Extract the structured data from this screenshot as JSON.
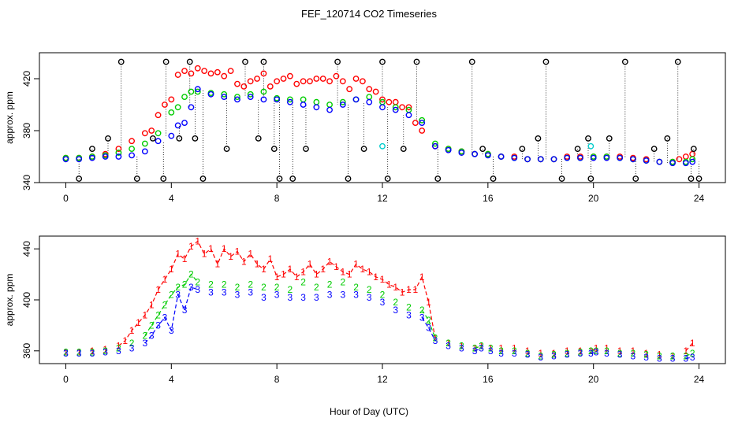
{
  "title": "FEF_120714  CO2 Timeseries",
  "xlabel": "Hour of Day (UTC)",
  "colors": {
    "series_1": "#ff0000",
    "series_2": "#00cc00",
    "series_3": "#0000ff",
    "outlier": "#000000",
    "special": "#00cccc",
    "frame": "#000000"
  },
  "chart_data": [
    {
      "type": "scatter",
      "panel": "top",
      "ylabel": "approx. ppm",
      "xlim": [
        -1,
        25
      ],
      "ylim": [
        340,
        440
      ],
      "x_ticks": [
        0,
        4,
        8,
        12,
        16,
        20,
        24
      ],
      "y_ticks": [
        340,
        380,
        420
      ],
      "grid": false,
      "drop_lines_to_outliers": true,
      "outlier_levels": [
        343,
        366,
        374,
        433
      ],
      "series": [
        {
          "color": "red",
          "x": [
            0,
            0.5,
            1,
            1.5,
            2,
            2.5,
            3,
            3.25,
            3.5,
            3.75,
            4,
            4.25,
            4.5,
            4.75,
            5,
            5.25,
            5.5,
            5.75,
            6,
            6.25,
            6.5,
            6.75,
            7,
            7.25,
            7.5,
            7.75,
            8,
            8.25,
            8.5,
            8.75,
            9,
            9.25,
            9.5,
            9.75,
            10,
            10.25,
            10.5,
            10.75,
            11,
            11.25,
            11.5,
            11.75,
            12,
            12.25,
            12.5,
            12.75,
            13,
            13.25,
            13.5,
            14,
            14.5,
            15,
            15.5,
            16,
            16.5,
            17,
            17.5,
            18,
            18.5,
            19,
            19.5,
            20,
            20.5,
            21,
            21.5,
            22,
            22.5,
            23,
            23.25,
            23.5,
            23.75
          ],
          "y": [
            359,
            359,
            360,
            362,
            366,
            372,
            378,
            380,
            392,
            400,
            404,
            423,
            426,
            424,
            428,
            426,
            424,
            425,
            422,
            426,
            416,
            414,
            418,
            420,
            424,
            414,
            418,
            420,
            422,
            416,
            418,
            418,
            420,
            420,
            418,
            422,
            418,
            412,
            420,
            418,
            412,
            410,
            404,
            402,
            402,
            398,
            398,
            386,
            380,
            368,
            366,
            364,
            362,
            362,
            360,
            360,
            358,
            358,
            358,
            360,
            360,
            360,
            360,
            360,
            359,
            358,
            356,
            356,
            358,
            360,
            362
          ]
        },
        {
          "color": "green",
          "x": [
            0,
            0.5,
            1,
            1.5,
            2,
            2.5,
            3,
            3.5,
            4,
            4.25,
            4.5,
            4.75,
            5,
            5.5,
            6,
            6.5,
            7,
            7.5,
            8,
            8.5,
            9,
            9.5,
            10,
            10.5,
            11,
            11.5,
            12,
            12.5,
            13,
            13.5,
            14,
            14.5,
            15,
            15.5,
            16,
            16.5,
            17,
            17.5,
            18,
            18.5,
            19,
            19.5,
            20,
            20.5,
            21,
            21.5,
            22,
            22.5,
            23,
            23.5,
            23.75
          ],
          "y": [
            359,
            359,
            360,
            361,
            363,
            366,
            370,
            378,
            394,
            398,
            406,
            410,
            410,
            409,
            408,
            406,
            408,
            410,
            405,
            404,
            404,
            402,
            400,
            402,
            404,
            406,
            402,
            398,
            396,
            388,
            370,
            366,
            364,
            362,
            362,
            360,
            359,
            358,
            358,
            358,
            359,
            359,
            360,
            360,
            359,
            358,
            357,
            356,
            356,
            356,
            358
          ]
        },
        {
          "color": "blue",
          "x": [
            0,
            0.5,
            1,
            1.5,
            2,
            2.5,
            3,
            3.5,
            4,
            4.25,
            4.5,
            4.75,
            5,
            5.5,
            6,
            6.5,
            7,
            7.5,
            8,
            8.5,
            9,
            9.5,
            10,
            10.5,
            11,
            11.5,
            12,
            12.5,
            13,
            13.5,
            14,
            14.5,
            15,
            15.5,
            16,
            16.5,
            17,
            17.5,
            18,
            18.5,
            19,
            19.5,
            20,
            20.5,
            21,
            21.5,
            22,
            22.5,
            23,
            23.5,
            23.75
          ],
          "y": [
            358,
            358,
            359,
            360,
            360,
            361,
            364,
            372,
            376,
            384,
            386,
            398,
            412,
            408,
            406,
            404,
            406,
            404,
            404,
            402,
            400,
            398,
            396,
            400,
            404,
            402,
            398,
            396,
            392,
            386,
            368,
            365,
            363,
            362,
            361,
            360,
            359,
            358,
            358,
            358,
            359,
            359,
            359,
            359,
            359,
            358,
            357,
            356,
            355,
            355,
            356
          ]
        },
        {
          "color": "black",
          "x": [
            0.5,
            1.0,
            1.6,
            2.1,
            2.7,
            3.3,
            3.7,
            3.8,
            4.3,
            4.7,
            4.9,
            5.2,
            6.1,
            6.8,
            7.3,
            7.5,
            7.9,
            8.1,
            8.6,
            9.1,
            10.3,
            10.7,
            11.3,
            12,
            12.2,
            12.8,
            13.3,
            14.1,
            15.4,
            15.8,
            16.2,
            17.3,
            17.9,
            18.2,
            18.8,
            19.4,
            19.8,
            19.9,
            20.6,
            21.2,
            21.6,
            22.3,
            22.8,
            23.2,
            23.7,
            23.8,
            24
          ],
          "y": [
            343,
            366,
            374,
            433,
            343,
            374,
            343,
            433,
            374,
            433,
            374,
            343,
            366,
            433,
            374,
            433,
            366,
            343,
            343,
            366,
            433,
            343,
            366,
            433,
            343,
            366,
            433,
            343,
            433,
            366,
            343,
            366,
            374,
            433,
            343,
            366,
            374,
            343,
            374,
            433,
            343,
            366,
            374,
            433,
            343,
            366,
            343
          ]
        },
        {
          "color": "cyan",
          "x": [
            12.0,
            19.9
          ],
          "y": [
            368,
            368
          ]
        }
      ]
    },
    {
      "type": "line",
      "panel": "bottom",
      "ylabel": "approx. ppm",
      "xlim": [
        -1,
        25
      ],
      "ylim": [
        350,
        450
      ],
      "x_ticks": [
        0,
        4,
        8,
        12,
        16,
        20,
        24
      ],
      "y_ticks": [
        360,
        400,
        440
      ],
      "grid": false,
      "point_labels": [
        "1",
        "2",
        "3"
      ],
      "series": [
        {
          "name": "1",
          "color": "red",
          "x": [
            0,
            0.5,
            1,
            1.5,
            2,
            2.25,
            2.5,
            2.75,
            3,
            3.25,
            3.5,
            3.75,
            4,
            4.25,
            4.5,
            4.75,
            5,
            5.25,
            5.5,
            5.75,
            6,
            6.25,
            6.5,
            6.75,
            7,
            7.25,
            7.5,
            7.75,
            8,
            8.25,
            8.5,
            8.75,
            9,
            9.25,
            9.5,
            9.75,
            10,
            10.25,
            10.5,
            10.75,
            11,
            11.25,
            11.5,
            11.75,
            12,
            12.25,
            12.5,
            12.75,
            13,
            13.25,
            13.5,
            13.75,
            14,
            14.5,
            15,
            15.5,
            15.75,
            16.1,
            16.5,
            17,
            17.5,
            18,
            18.5,
            19,
            19.5,
            19.9,
            20.1,
            20.5,
            21,
            21.5,
            22,
            22.5,
            23,
            23.5,
            23.75
          ],
          "y": [
            359,
            359,
            360,
            361,
            364,
            368,
            376,
            382,
            388,
            396,
            408,
            416,
            424,
            436,
            432,
            442,
            446,
            436,
            440,
            428,
            440,
            434,
            438,
            430,
            436,
            428,
            424,
            432,
            418,
            420,
            424,
            418,
            422,
            428,
            420,
            424,
            430,
            426,
            422,
            420,
            428,
            424,
            422,
            418,
            416,
            412,
            410,
            406,
            408,
            408,
            418,
            398,
            370,
            366,
            364,
            362,
            364,
            362,
            362,
            362,
            360,
            358,
            358,
            360,
            360,
            360,
            362,
            362,
            360,
            360,
            358,
            357,
            356,
            360,
            366
          ]
        },
        {
          "name": "2",
          "color": "green",
          "x": [
            0,
            0.5,
            1,
            1.5,
            2,
            2.5,
            3,
            3.25,
            3.5,
            3.75,
            4,
            4.25,
            4.5,
            4.75,
            5,
            5.5,
            6,
            6.5,
            7,
            7.5,
            8,
            8.5,
            9,
            9.5,
            10,
            10.5,
            11,
            11.5,
            12,
            12.5,
            13,
            13.5,
            13.75,
            14,
            14.5,
            15,
            15.5,
            15.75,
            16.1,
            16.5,
            17,
            17.5,
            18,
            18.5,
            19,
            19.5,
            19.9,
            20.1,
            20.5,
            21,
            21.5,
            22,
            22.5,
            23,
            23.5,
            23.75
          ],
          "y": [
            359,
            359,
            359,
            360,
            362,
            366,
            372,
            380,
            388,
            396,
            404,
            410,
            412,
            420,
            414,
            412,
            412,
            410,
            412,
            410,
            410,
            408,
            414,
            410,
            412,
            414,
            410,
            408,
            404,
            398,
            394,
            392,
            384,
            370,
            366,
            364,
            362,
            364,
            362,
            360,
            360,
            358,
            356,
            357,
            358,
            359,
            360,
            360,
            360,
            358,
            358,
            357,
            356,
            356,
            356,
            358
          ]
        },
        {
          "name": "3",
          "color": "blue",
          "x": [
            0,
            0.5,
            1,
            1.5,
            2,
            2.5,
            3,
            3.25,
            3.5,
            3.75,
            4,
            4.25,
            4.5,
            4.75,
            5,
            5.5,
            6,
            6.5,
            7,
            7.5,
            8,
            8.5,
            9,
            9.5,
            10,
            10.5,
            11,
            11.5,
            12,
            12.5,
            13,
            13.5,
            13.75,
            14,
            14.5,
            15,
            15.5,
            15.75,
            16.1,
            16.5,
            17,
            17.5,
            18,
            18.5,
            19,
            19.5,
            19.9,
            20.1,
            20.5,
            21,
            21.5,
            22,
            22.5,
            23,
            23.5,
            23.75
          ],
          "y": [
            358,
            358,
            358,
            359,
            360,
            362,
            366,
            372,
            380,
            386,
            376,
            404,
            392,
            410,
            408,
            406,
            406,
            404,
            406,
            402,
            404,
            402,
            402,
            402,
            404,
            404,
            404,
            402,
            398,
            392,
            388,
            386,
            378,
            368,
            364,
            362,
            360,
            362,
            360,
            358,
            358,
            357,
            355,
            356,
            357,
            358,
            358,
            359,
            358,
            357,
            356,
            355,
            354,
            354,
            354,
            355
          ]
        }
      ]
    }
  ]
}
